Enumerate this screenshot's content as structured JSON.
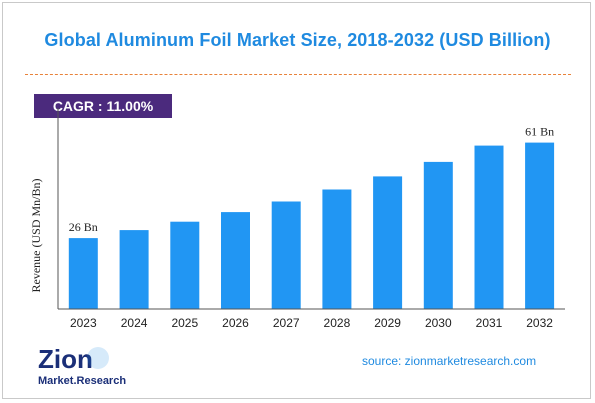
{
  "header": {
    "title": "Global Aluminum Foil Market Size, 2018-2032 (USD Billion)",
    "cagr": "CAGR : 11.00%"
  },
  "footer": {
    "source": "source: zionmarketresearch.com",
    "logo_name": "Zion Market Research",
    "logo_text_top": "Zion",
    "logo_text_bottom": "Market.Research"
  },
  "colors": {
    "bar": "#2196f3",
    "title": "#1f8ae0",
    "cagr_bg": "#4b2a7d",
    "divider": "#e8823a",
    "axis": "#555555"
  },
  "chart_data": {
    "type": "bar",
    "title": "Global Aluminum Foil Market Size, 2018-2032 (USD Billion)",
    "xlabel": "",
    "ylabel": "Revenue (USD Mn/Bn)",
    "categories": [
      "2023",
      "2024",
      "2025",
      "2026",
      "2027",
      "2028",
      "2029",
      "2030",
      "2031",
      "2032"
    ],
    "series": [
      {
        "values": [
          26,
          28.9,
          32,
          35.5,
          39.4,
          43.8,
          48.6,
          53.9,
          59.9,
          61
        ]
      }
    ],
    "data_labels": [
      {
        "index": 0,
        "text": "26 Bn"
      },
      {
        "index": 9,
        "text": "61 Bn"
      }
    ],
    "ylim": [
      0,
      70
    ],
    "grid": false,
    "legend": "none"
  }
}
